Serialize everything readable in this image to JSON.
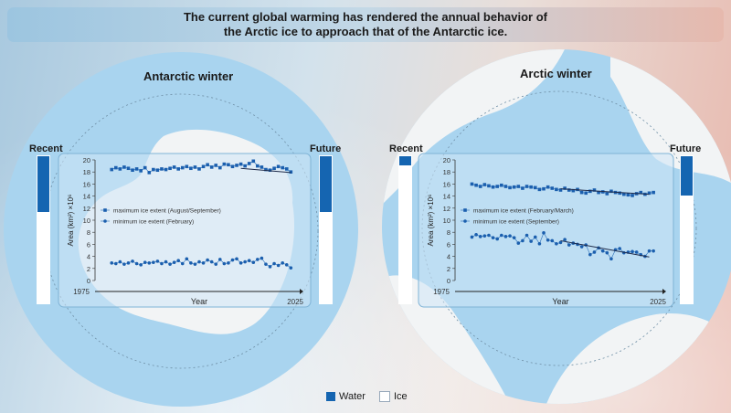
{
  "header": {
    "line1": "The current global warming has rendered the annual behavior of",
    "line2": "the Arctic ice to approach that of the Antarctic ice."
  },
  "labels": {
    "recent": "Recent",
    "future": "Future"
  },
  "legend": {
    "water": "Water",
    "ice": "Ice",
    "water_color": "#1565b1",
    "ice_color": "#ffffff"
  },
  "chart_data": [
    {
      "type": "line",
      "title": "Antarctic winter",
      "xlabel": "Year",
      "ylabel": "Area (km²) ×10⁶",
      "xlim": [
        1975,
        2025
      ],
      "ylim": [
        0,
        20
      ],
      "x_tick_labels": [
        "1975",
        "2025"
      ],
      "y_ticks": [
        0,
        2,
        4,
        6,
        8,
        10,
        12,
        14,
        16,
        18,
        20
      ],
      "recent_water_fraction": 0.38,
      "future_water_fraction": 0.38,
      "series": [
        {
          "name": "maximum ice extent (August/September)",
          "marker": "square",
          "x": [
            1979,
            1980,
            1981,
            1982,
            1983,
            1984,
            1985,
            1986,
            1987,
            1988,
            1989,
            1990,
            1991,
            1992,
            1993,
            1994,
            1995,
            1996,
            1997,
            1998,
            1999,
            2000,
            2001,
            2002,
            2003,
            2004,
            2005,
            2006,
            2007,
            2008,
            2009,
            2010,
            2011,
            2012,
            2013,
            2014,
            2015,
            2016,
            2017,
            2018,
            2019,
            2020,
            2021,
            2022
          ],
          "values": [
            18.4,
            18.7,
            18.5,
            18.8,
            18.6,
            18.3,
            18.5,
            18.2,
            18.7,
            17.9,
            18.4,
            18.3,
            18.5,
            18.4,
            18.6,
            18.8,
            18.5,
            18.7,
            18.9,
            18.6,
            18.8,
            18.5,
            18.9,
            19.2,
            18.8,
            19.1,
            18.7,
            19.3,
            19.2,
            18.9,
            19.1,
            19.3,
            19.0,
            19.4,
            19.8,
            19.0,
            18.8,
            18.4,
            18.3,
            18.6,
            18.9,
            18.7,
            18.5,
            18.0
          ],
          "trend": [
            [
              2010,
              18.6
            ],
            [
              2022,
              17.9
            ]
          ]
        },
        {
          "name": "minimum ice extent (February)",
          "marker": "circle",
          "x": [
            1979,
            1980,
            1981,
            1982,
            1983,
            1984,
            1985,
            1986,
            1987,
            1988,
            1989,
            1990,
            1991,
            1992,
            1993,
            1994,
            1995,
            1996,
            1997,
            1998,
            1999,
            2000,
            2001,
            2002,
            2003,
            2004,
            2005,
            2006,
            2007,
            2008,
            2009,
            2010,
            2011,
            2012,
            2013,
            2014,
            2015,
            2016,
            2017,
            2018,
            2019,
            2020,
            2021,
            2022
          ],
          "values": [
            2.9,
            2.8,
            3.1,
            2.7,
            2.9,
            3.2,
            2.8,
            2.6,
            3.0,
            2.9,
            3.0,
            3.2,
            2.8,
            3.1,
            2.7,
            3.0,
            3.3,
            2.8,
            3.6,
            2.9,
            2.7,
            3.1,
            2.9,
            3.4,
            3.1,
            2.7,
            3.5,
            2.8,
            2.9,
            3.4,
            3.6,
            2.9,
            3.1,
            3.3,
            3.0,
            3.5,
            3.7,
            2.7,
            2.3,
            2.8,
            2.5,
            2.9,
            2.6,
            2.1
          ]
        }
      ]
    },
    {
      "type": "line",
      "title": "Arctic winter",
      "xlabel": "Year",
      "ylabel": "Area (km²) ×10⁶",
      "xlim": [
        1975,
        2025
      ],
      "ylim": [
        0,
        20
      ],
      "x_tick_labels": [
        "1975",
        "2025"
      ],
      "y_ticks": [
        0,
        2,
        4,
        6,
        8,
        10,
        12,
        14,
        16,
        18,
        20
      ],
      "recent_water_fraction": 0.06,
      "future_water_fraction": 0.27,
      "series": [
        {
          "name": "maximum ice extent (February/March)",
          "marker": "square",
          "x": [
            1979,
            1980,
            1981,
            1982,
            1983,
            1984,
            1985,
            1986,
            1987,
            1988,
            1989,
            1990,
            1991,
            1992,
            1993,
            1994,
            1995,
            1996,
            1997,
            1998,
            1999,
            2000,
            2001,
            2002,
            2003,
            2004,
            2005,
            2006,
            2007,
            2008,
            2009,
            2010,
            2011,
            2012,
            2013,
            2014,
            2015,
            2016,
            2017,
            2018,
            2019,
            2020,
            2021,
            2022
          ],
          "values": [
            16.0,
            15.8,
            15.6,
            15.9,
            15.7,
            15.5,
            15.6,
            15.8,
            15.6,
            15.4,
            15.5,
            15.6,
            15.3,
            15.6,
            15.5,
            15.4,
            15.1,
            15.2,
            15.5,
            15.3,
            15.1,
            15.0,
            15.3,
            15.0,
            14.9,
            15.1,
            14.6,
            14.5,
            14.8,
            15.0,
            14.6,
            14.7,
            14.4,
            14.8,
            14.6,
            14.5,
            14.3,
            14.2,
            14.1,
            14.4,
            14.6,
            14.3,
            14.5,
            14.6
          ],
          "trend": [
            [
              2000,
              15.2
            ],
            [
              2021,
              14.3
            ]
          ]
        },
        {
          "name": "minimum ice extent (September)",
          "marker": "circle",
          "x": [
            1979,
            1980,
            1981,
            1982,
            1983,
            1984,
            1985,
            1986,
            1987,
            1988,
            1989,
            1990,
            1991,
            1992,
            1993,
            1994,
            1995,
            1996,
            1997,
            1998,
            1999,
            2000,
            2001,
            2002,
            2003,
            2004,
            2005,
            2006,
            2007,
            2008,
            2009,
            2010,
            2011,
            2012,
            2013,
            2014,
            2015,
            2016,
            2017,
            2018,
            2019,
            2020,
            2021,
            2022
          ],
          "values": [
            7.2,
            7.6,
            7.3,
            7.4,
            7.5,
            7.1,
            6.9,
            7.5,
            7.3,
            7.4,
            7.1,
            6.2,
            6.6,
            7.5,
            6.5,
            7.2,
            6.1,
            7.9,
            6.7,
            6.6,
            6.1,
            6.3,
            6.8,
            5.9,
            6.2,
            6.0,
            5.6,
            5.9,
            4.3,
            4.7,
            5.4,
            4.9,
            4.6,
            3.6,
            5.1,
            5.3,
            4.6,
            4.7,
            4.8,
            4.7,
            4.3,
            4.0,
            4.9,
            4.9
          ],
          "trend": [
            [
              2000,
              6.6
            ],
            [
              2021,
              3.9
            ]
          ]
        }
      ]
    }
  ]
}
